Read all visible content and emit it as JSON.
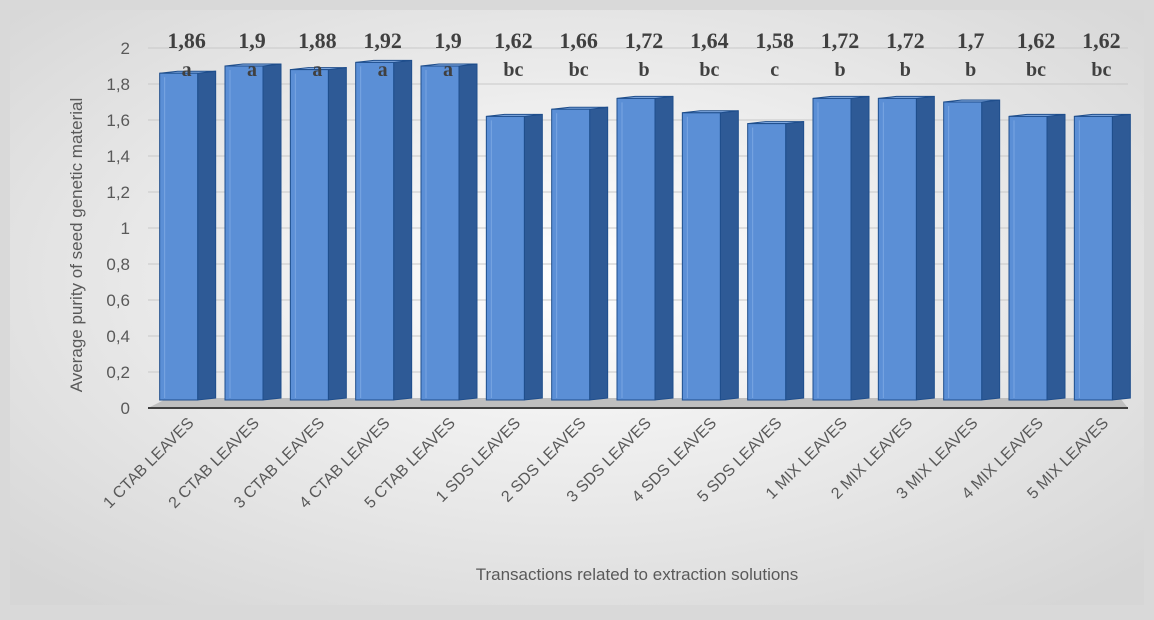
{
  "chart_data": {
    "type": "bar",
    "title": "",
    "xlabel": "Transactions related to extraction solutions",
    "ylabel": "Average purity of seed genetic material",
    "ylim": [
      0,
      2
    ],
    "yticks": [
      "0",
      "0,2",
      "0,4",
      "0,6",
      "0,8",
      "1",
      "1,2",
      "1,4",
      "1,6",
      "1,8",
      "2"
    ],
    "ytick_values": [
      0,
      0.2,
      0.4,
      0.6,
      0.8,
      1,
      1.2,
      1.4,
      1.6,
      1.8,
      2
    ],
    "grid": true,
    "categories": [
      "1 CTAB LEAVES",
      "2 CTAB LEAVES",
      "3 CTAB LEAVES",
      "4 CTAB LEAVES",
      "5 CTAB LEAVES",
      "1 SDS LEAVES",
      "2 SDS LEAVES",
      "3 SDS LEAVES",
      "4 SDS LEAVES",
      "5 SDS LEAVES",
      "1 MIX LEAVES",
      "2 MIX LEAVES",
      "3 MIX LEAVES",
      "4 MIX LEAVES",
      "5 MIX LEAVES"
    ],
    "values": [
      1.86,
      1.9,
      1.88,
      1.92,
      1.9,
      1.62,
      1.66,
      1.72,
      1.64,
      1.58,
      1.72,
      1.72,
      1.7,
      1.62,
      1.62
    ],
    "value_labels": [
      "1,86",
      "1,9",
      "1,88",
      "1,92",
      "1,9",
      "1,62",
      "1,66",
      "1,72",
      "1,64",
      "1,58",
      "1,72",
      "1,72",
      "1,7",
      "1,62",
      "1,62"
    ],
    "group_labels": [
      "a",
      "a",
      "a",
      "a",
      "a",
      "bc",
      "bc",
      "b",
      "bc",
      "c",
      "b",
      "b",
      "b",
      "bc",
      "bc"
    ],
    "colors": {
      "bar_front": "#5b8fd6",
      "bar_side": "#2e5a96",
      "bar_top": "#8db4ea",
      "edge": "#1f4e8c"
    }
  }
}
